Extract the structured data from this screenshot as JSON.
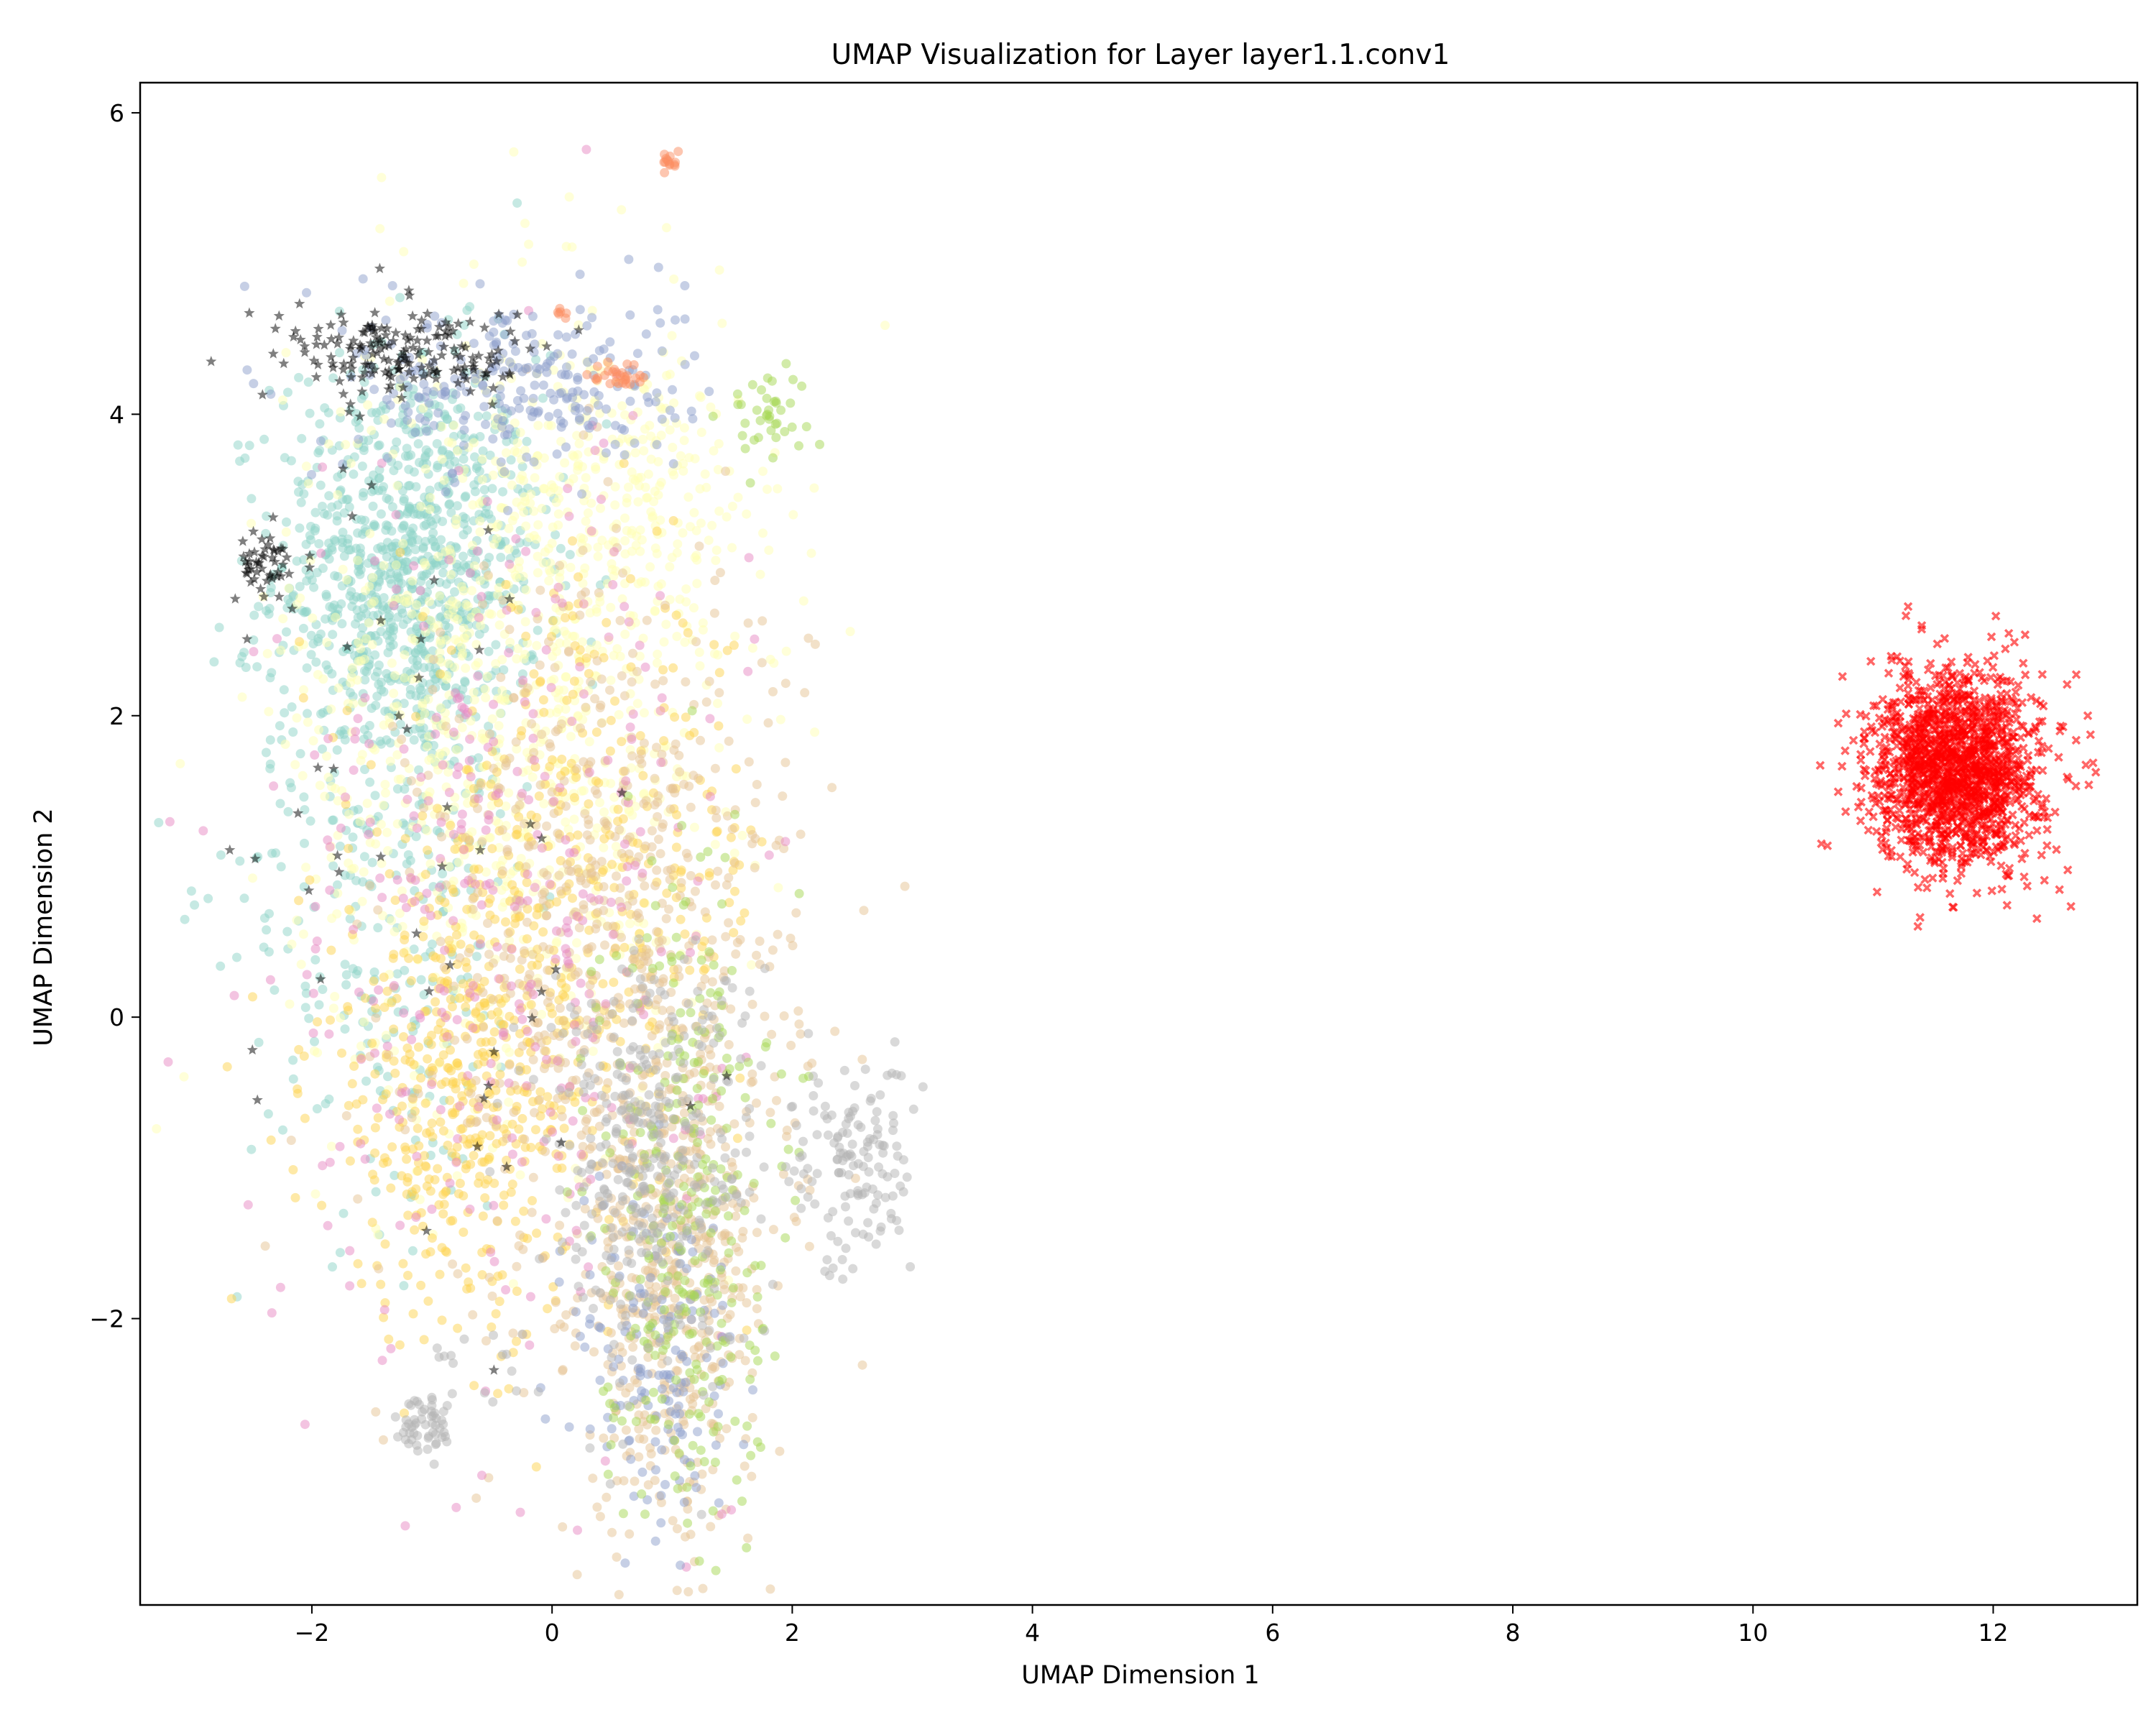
{
  "chart_data": {
    "type": "scatter",
    "title": "UMAP Visualization for Layer layer1.1.conv1",
    "xlabel": "UMAP Dimension 1",
    "ylabel": "UMAP Dimension 2",
    "xlim": [
      -3.43,
      13.2
    ],
    "ylim": [
      -3.9,
      6.2
    ],
    "xticks": [
      -2,
      0,
      2,
      4,
      6,
      8,
      10,
      12
    ],
    "yticks": [
      -2,
      0,
      2,
      4,
      6
    ],
    "xtick_labels": [
      "−2",
      "0",
      "2",
      "4",
      "6",
      "8",
      "10",
      "12"
    ],
    "ytick_labels": [
      "−2",
      "0",
      "2",
      "4",
      "6"
    ],
    "grid": false,
    "legend": false,
    "point_alpha": 0.5,
    "groups": [
      {
        "color": "#8dd3c7",
        "marker": "circle",
        "center": [
          -1.2,
          3.0
        ],
        "spread": [
          0.55,
          0.7
        ],
        "count": 900
      },
      {
        "color": "#8dd3c7",
        "marker": "circle",
        "center": [
          -1.4,
          1.0
        ],
        "spread": [
          0.6,
          1.2
        ],
        "count": 300
      },
      {
        "color": "#ffffb3",
        "marker": "circle",
        "center": [
          -0.4,
          2.0
        ],
        "spread": [
          0.9,
          1.3
        ],
        "count": 900
      },
      {
        "color": "#ffffb3",
        "marker": "circle",
        "center": [
          0.6,
          3.5
        ],
        "spread": [
          0.6,
          0.5
        ],
        "count": 250
      },
      {
        "color": "#fdd44f",
        "marker": "circle",
        "center": [
          -0.7,
          -0.5
        ],
        "spread": [
          0.65,
          0.8
        ],
        "count": 500
      },
      {
        "color": "#fdd44f",
        "marker": "circle",
        "center": [
          0.3,
          1.0
        ],
        "spread": [
          0.8,
          0.9
        ],
        "count": 300
      },
      {
        "color": "#e5c494",
        "marker": "circle",
        "center": [
          0.5,
          0.4
        ],
        "spread": [
          0.8,
          1.3
        ],
        "count": 700
      },
      {
        "color": "#e5c494",
        "marker": "circle",
        "center": [
          1.0,
          -1.8
        ],
        "spread": [
          0.35,
          0.8
        ],
        "count": 450
      },
      {
        "color": "#e78ac3",
        "marker": "circle",
        "center": [
          -0.4,
          0.8
        ],
        "spread": [
          0.95,
          1.5
        ],
        "count": 350
      },
      {
        "color": "#8da0cb",
        "marker": "circle",
        "center": [
          -0.3,
          4.2
        ],
        "spread": [
          0.7,
          0.3
        ],
        "count": 250
      },
      {
        "color": "#8da0cb",
        "marker": "circle",
        "center": [
          0.9,
          -2.3
        ],
        "spread": [
          0.35,
          0.7
        ],
        "count": 150
      },
      {
        "color": "#a6d854",
        "marker": "circle",
        "center": [
          1.1,
          -1.2
        ],
        "spread": [
          0.35,
          1.1
        ],
        "count": 300
      },
      {
        "color": "#a6d854",
        "marker": "circle",
        "center": [
          1.8,
          4.0
        ],
        "spread": [
          0.2,
          0.15
        ],
        "count": 40
      },
      {
        "color": "#b3b3b3",
        "marker": "circle",
        "center": [
          0.8,
          -0.9
        ],
        "spread": [
          0.45,
          0.7
        ],
        "count": 350
      },
      {
        "color": "#b3b3b3",
        "marker": "circle",
        "center": [
          2.5,
          -1.0
        ],
        "spread": [
          0.25,
          0.35
        ],
        "count": 140
      },
      {
        "color": "#b3b3b3",
        "marker": "circle",
        "center": [
          -1.05,
          -2.7
        ],
        "spread": [
          0.12,
          0.12
        ],
        "count": 50
      },
      {
        "color": "#b3b3b3",
        "marker": "circle",
        "center": [
          -0.6,
          -2.4
        ],
        "spread": [
          0.3,
          0.2
        ],
        "count": 20
      },
      {
        "color": "#fc8d62",
        "marker": "circle",
        "center": [
          0.6,
          4.25
        ],
        "spread": [
          0.15,
          0.05
        ],
        "count": 30
      },
      {
        "color": "#fc8d62",
        "marker": "circle",
        "center": [
          0.98,
          5.68
        ],
        "spread": [
          0.03,
          0.03
        ],
        "count": 14
      },
      {
        "color": "#fc8d62",
        "marker": "circle",
        "center": [
          0.08,
          4.67
        ],
        "spread": [
          0.03,
          0.02
        ],
        "count": 6
      },
      {
        "color": "#000000",
        "marker": "star",
        "center": [
          -1.2,
          4.4
        ],
        "spread": [
          0.55,
          0.15
        ],
        "count": 180
      },
      {
        "color": "#000000",
        "marker": "star",
        "center": [
          -2.4,
          3.0
        ],
        "spread": [
          0.12,
          0.12
        ],
        "count": 50
      },
      {
        "color": "#000000",
        "marker": "star",
        "center": [
          -1.0,
          1.0
        ],
        "spread": [
          1.0,
          1.6
        ],
        "count": 50
      },
      {
        "color": "#ff0000",
        "marker": "x",
        "center": [
          11.7,
          1.65
        ],
        "spread": [
          0.35,
          0.32
        ],
        "count": 1500
      }
    ]
  }
}
